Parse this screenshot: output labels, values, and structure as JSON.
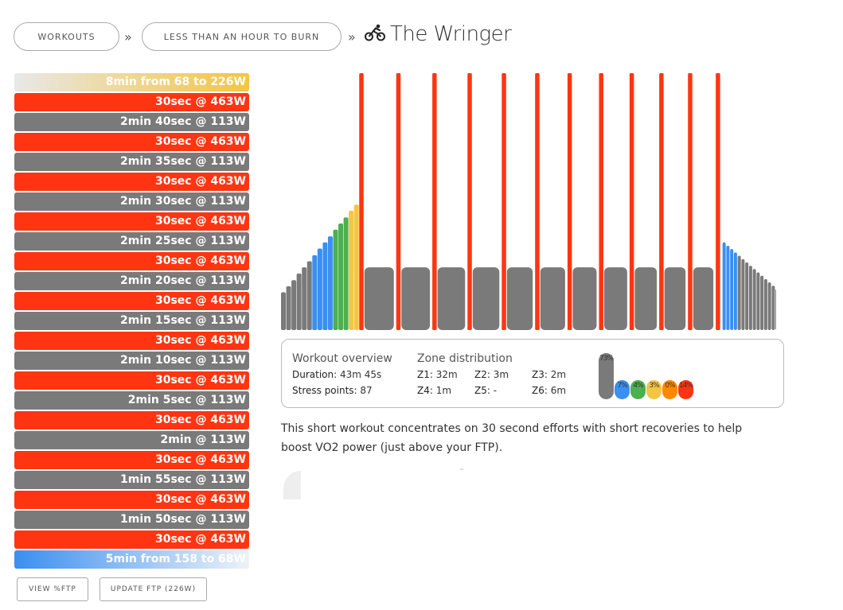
{
  "breadcrumb": {
    "workouts_label": "WORKOUTS",
    "category_label": "LESS THAN AN HOUR TO BURN",
    "separator": "»",
    "title": "The Wringer",
    "title_icon": "cyclist-icon"
  },
  "intervals": [
    {
      "label": "8min from 68 to 226W",
      "kind": "warm"
    },
    {
      "label": "30sec @ 463W",
      "kind": "red"
    },
    {
      "label": "2min 40sec @ 113W",
      "kind": "grey"
    },
    {
      "label": "30sec @ 463W",
      "kind": "red"
    },
    {
      "label": "2min 35sec @ 113W",
      "kind": "grey"
    },
    {
      "label": "30sec @ 463W",
      "kind": "red"
    },
    {
      "label": "2min 30sec @ 113W",
      "kind": "grey"
    },
    {
      "label": "30sec @ 463W",
      "kind": "red"
    },
    {
      "label": "2min 25sec @ 113W",
      "kind": "grey"
    },
    {
      "label": "30sec @ 463W",
      "kind": "red"
    },
    {
      "label": "2min 20sec @ 113W",
      "kind": "grey"
    },
    {
      "label": "30sec @ 463W",
      "kind": "red"
    },
    {
      "label": "2min 15sec @ 113W",
      "kind": "grey"
    },
    {
      "label": "30sec @ 463W",
      "kind": "red"
    },
    {
      "label": "2min 10sec @ 113W",
      "kind": "grey"
    },
    {
      "label": "30sec @ 463W",
      "kind": "red"
    },
    {
      "label": "2min 5sec @ 113W",
      "kind": "grey"
    },
    {
      "label": "30sec @ 463W",
      "kind": "red"
    },
    {
      "label": "2min @ 113W",
      "kind": "grey"
    },
    {
      "label": "30sec @ 463W",
      "kind": "red"
    },
    {
      "label": "1min 55sec @ 113W",
      "kind": "grey"
    },
    {
      "label": "30sec @ 463W",
      "kind": "red"
    },
    {
      "label": "1min 50sec @ 113W",
      "kind": "grey"
    },
    {
      "label": "30sec @ 463W",
      "kind": "red"
    },
    {
      "label": "5min from 158 to 68W",
      "kind": "cool"
    }
  ],
  "buttons": {
    "view_ftp": "VIEW %FTP",
    "update_ftp": "UPDATE FTP (226W)"
  },
  "chart_data": {
    "type": "bar",
    "ftp_watts": 226,
    "warmup_blocks_watts": [
      68,
      79,
      90,
      102,
      113,
      124,
      135,
      147,
      158,
      169,
      181,
      192,
      203,
      215,
      226
    ],
    "warmup_block_colors": [
      "#7a7a7a",
      "#7a7a7a",
      "#7a7a7a",
      "#7a7a7a",
      "#7a7a7a",
      "#7a7a7a",
      "#3a8ff0",
      "#3a8ff0",
      "#3a8ff0",
      "#3a8ff0",
      "#4caf50",
      "#4caf50",
      "#4caf50",
      "#f4c542",
      "#f4c542"
    ],
    "efforts": [
      {
        "duration_sec": 30,
        "watts": 463,
        "recovery_sec": 160
      },
      {
        "duration_sec": 30,
        "watts": 463,
        "recovery_sec": 155
      },
      {
        "duration_sec": 30,
        "watts": 463,
        "recovery_sec": 150
      },
      {
        "duration_sec": 30,
        "watts": 463,
        "recovery_sec": 145
      },
      {
        "duration_sec": 30,
        "watts": 463,
        "recovery_sec": 140
      },
      {
        "duration_sec": 30,
        "watts": 463,
        "recovery_sec": 135
      },
      {
        "duration_sec": 30,
        "watts": 463,
        "recovery_sec": 130
      },
      {
        "duration_sec": 30,
        "watts": 463,
        "recovery_sec": 125
      },
      {
        "duration_sec": 30,
        "watts": 463,
        "recovery_sec": 120
      },
      {
        "duration_sec": 30,
        "watts": 463,
        "recovery_sec": 115
      },
      {
        "duration_sec": 30,
        "watts": 463,
        "recovery_sec": 110
      },
      {
        "duration_sec": 30,
        "watts": 463
      }
    ],
    "recovery_watts": 113,
    "cooldown_blocks_watts": [
      158,
      152,
      146,
      140,
      134,
      128,
      122,
      116,
      110,
      104,
      98,
      92,
      86,
      80,
      74,
      68
    ],
    "cooldown_block_colors": [
      "#3a8ff0",
      "#3a8ff0",
      "#3a8ff0",
      "#3a8ff0",
      "#7a7a7a",
      "#7a7a7a",
      "#7a7a7a",
      "#7a7a7a",
      "#7a7a7a",
      "#7a7a7a",
      "#7a7a7a",
      "#7a7a7a",
      "#7a7a7a",
      "#7a7a7a",
      "#7a7a7a",
      "#7a7a7a"
    ],
    "colors": {
      "effort": "#ff3512",
      "recovery": "#7a7a7a"
    }
  },
  "overview": {
    "heading": "Workout overview",
    "duration_label": "Duration:",
    "duration_value": "43m 45s",
    "stress_label": "Stress points:",
    "stress_value": "87"
  },
  "zones": {
    "heading": "Zone distribution",
    "z1_label": "Z1:",
    "z1_value": "32m",
    "z2_label": "Z2:",
    "z2_value": "3m",
    "z3_label": "Z3:",
    "z3_value": "2m",
    "z4_label": "Z4:",
    "z4_value": "1m",
    "z5_label": "Z5:",
    "z5_value": "-",
    "z6_label": "Z6:",
    "z6_value": "6m",
    "bars": [
      {
        "label": "73%",
        "percent": 73,
        "color": "#7a7a7a"
      },
      {
        "label": "7%",
        "percent": 7,
        "color": "#3a8ff0"
      },
      {
        "label": "4%",
        "percent": 4,
        "color": "#4caf50"
      },
      {
        "label": "3%",
        "percent": 3,
        "color": "#f4c542"
      },
      {
        "label": "0%",
        "percent": 0,
        "color": "#ff8a00"
      },
      {
        "label": "14%",
        "percent": 14,
        "color": "#ff3512"
      }
    ]
  },
  "description": "This short workout concentrates on 30 second efforts with short recoveries to help boost VO2 power (just above your FTP)."
}
